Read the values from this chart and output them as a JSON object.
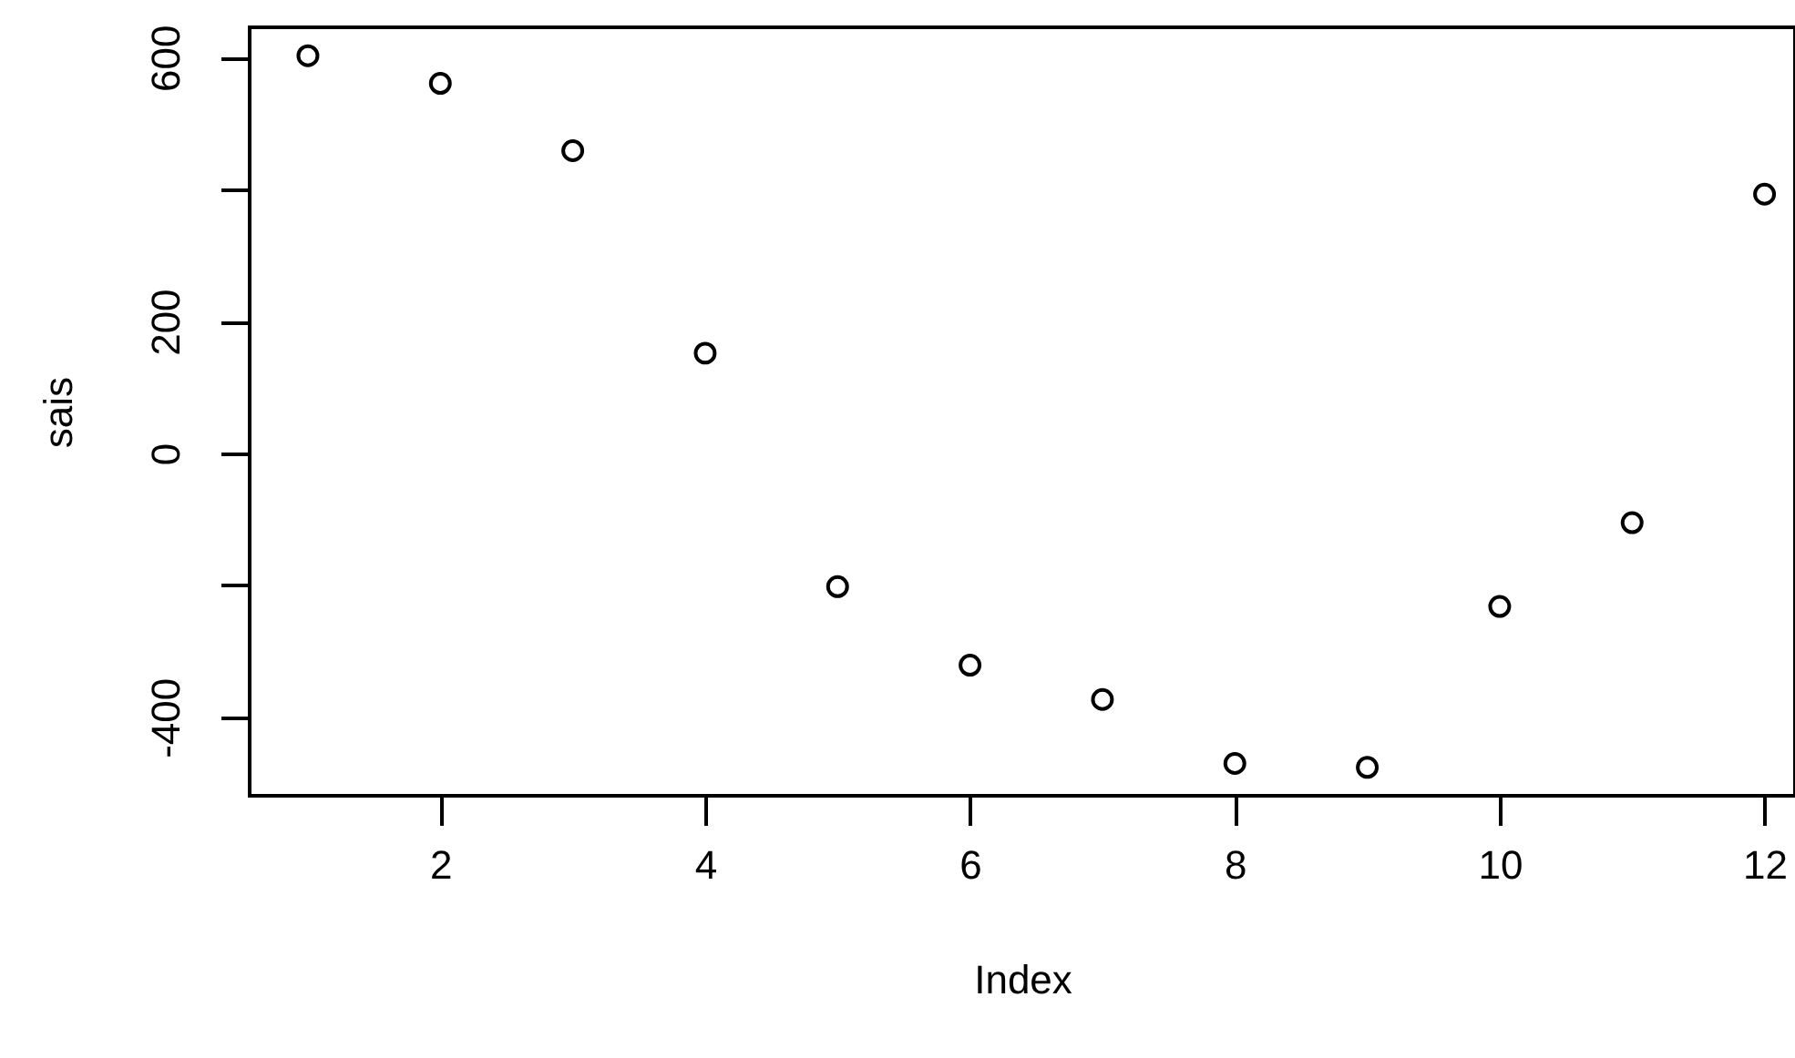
{
  "chart_data": {
    "type": "scatter",
    "xlabel": "Index",
    "ylabel": "sais",
    "marker": "circle",
    "grid": false,
    "x": [
      1,
      2,
      3,
      4,
      5,
      6,
      7,
      8,
      9,
      10,
      11,
      12
    ],
    "series": [
      {
        "color": "#000000",
        "values": [
          603,
          561,
          459,
          152,
          -202,
          -321,
          -373,
          -470,
          -476,
          -232,
          -105,
          393
        ]
      }
    ],
    "xlim": [
      0.56,
      12.23
    ],
    "xticks": [
      2,
      4,
      6,
      8,
      10,
      12
    ],
    "ylim": [
      -519,
      646
    ],
    "yticks": [
      {
        "value": -400,
        "label": "-400"
      },
      {
        "value": -200,
        "label": null
      },
      0,
      200,
      {
        "value": 400,
        "label": null
      },
      600
    ]
  }
}
